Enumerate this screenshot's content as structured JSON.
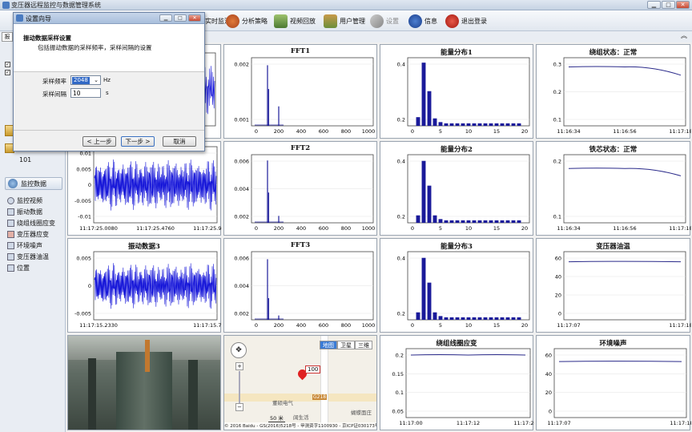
{
  "window": {
    "title": "变压器远程监控与数据管理系统",
    "min": "▁",
    "max": "□",
    "close": "✕"
  },
  "toolbar": {
    "items": [
      {
        "label": "实时监测",
        "icon": "monitor-icon"
      },
      {
        "label": "分析策略",
        "icon": "analysis-icon"
      },
      {
        "label": "视频回放",
        "icon": "video-icon"
      },
      {
        "label": "用户管理",
        "icon": "users-icon"
      },
      {
        "label": "设置",
        "icon": "wrench-icon"
      },
      {
        "label": "信息",
        "icon": "info-icon"
      },
      {
        "label": "退出登录",
        "icon": "logout-icon"
      }
    ]
  },
  "sidebar": {
    "tab_label": "报",
    "num_label": "101",
    "section": "监控数据",
    "items": [
      "监控视频",
      "振动数据",
      "绕组线圈应变",
      "变压器应变",
      "环境噪声",
      "变压器油温",
      "位置"
    ]
  },
  "dialog": {
    "title": "设置向导",
    "heading": "振动数据采样设置",
    "subheading": "包括振动数据的采样频率，采样间隔的设置",
    "freq_label": "采样频率",
    "freq_value": "2048",
    "freq_unit": "Hz",
    "interval_label": "采样间隔",
    "interval_value": "10",
    "interval_unit": "s",
    "prev_label": "< 上一步",
    "next_label": "下一步 >",
    "cancel_label": "取消",
    "close": "✕",
    "min": "▁",
    "max": "□"
  },
  "panels": {
    "vib1": {
      "title": "",
      "x_ticks": [
        "720"
      ]
    },
    "vib2": {
      "title": "",
      "y_ticks": [
        "0.01",
        "0.005",
        "0",
        "-0.005",
        "-0.01"
      ],
      "x_ticks": [
        "11:17:25.0080",
        "11:17:25.4760",
        "11:17:25.9440"
      ]
    },
    "vib3": {
      "title": "振动数据3",
      "y_ticks": [
        "0.005",
        "0",
        "-0.005"
      ],
      "x_ticks": [
        "11:17:15.2330",
        "11:17:15.7320"
      ]
    },
    "fft1": {
      "title": "FFT1",
      "y_ticks": [
        "0.002",
        "0.001"
      ],
      "x_ticks": [
        "0",
        "200",
        "400",
        "600",
        "800",
        "1000"
      ]
    },
    "fft2": {
      "title": "FFT2",
      "y_ticks": [
        "0.006",
        "0.004",
        "0.002"
      ],
      "x_ticks": [
        "0",
        "200",
        "400",
        "600",
        "800",
        "1000"
      ]
    },
    "fft3": {
      "title": "FFT3",
      "y_ticks": [
        "0.006",
        "0.004",
        "0.002"
      ],
      "x_ticks": [
        "0",
        "200",
        "400",
        "600",
        "800",
        "1000"
      ]
    },
    "en1": {
      "title": "能量分布1",
      "y_ticks": [
        "0.4",
        "0.2"
      ],
      "x_ticks": [
        "0",
        "5",
        "10",
        "15",
        "20"
      ]
    },
    "en2": {
      "title": "能量分布2",
      "y_ticks": [
        "0.4",
        "0.2"
      ],
      "x_ticks": [
        "0",
        "5",
        "10",
        "15",
        "20"
      ]
    },
    "en3": {
      "title": "能量分布3",
      "y_ticks": [
        "0.4",
        "0.2"
      ],
      "x_ticks": [
        "0",
        "5",
        "10",
        "15",
        "20"
      ]
    },
    "wind": {
      "title": "绕组状态：正常",
      "y_ticks": [
        "0.3",
        "0.2",
        "0.1"
      ],
      "x_ticks": [
        "11:16:34",
        "11:16:56",
        "11:17:18"
      ]
    },
    "core": {
      "title": "铁芯状态：正常",
      "y_ticks": [
        "0.2",
        "0.1"
      ],
      "x_ticks": [
        "11:16:34",
        "11:16:56",
        "11:17:18"
      ]
    },
    "oil": {
      "title": "变压器油温",
      "y_ticks": [
        "60",
        "40",
        "20",
        "0"
      ],
      "x_ticks": [
        "11:17:07",
        "11:17:18"
      ]
    },
    "strain": {
      "title": "绕组线圈应变",
      "y_ticks": [
        "0.2",
        "0.15",
        "0.1",
        "0.05"
      ],
      "x_ticks": [
        "11:17:00",
        "11:17:12",
        "11:17:24"
      ]
    },
    "noise": {
      "title": "环境噪声",
      "y_ticks": [
        "60",
        "40",
        "20",
        "0"
      ],
      "x_ticks": [
        "11:17:07",
        "11:17:18"
      ]
    }
  },
  "map": {
    "tabs": [
      "地图",
      "卫星",
      "三维"
    ],
    "marker_label": "100",
    "place1": "董硕电气",
    "place2": "阔生活",
    "place3": "蝴蝶面庄",
    "scale": "50 米",
    "road": "G218",
    "copyright": "© 2016 Baidu - GS(2016)5218号 - 甲测资字1100930 - 京ICP证030173号"
  },
  "chart_data": [
    {
      "type": "line",
      "title": "绕组状态：正常",
      "x": [
        "11:16:34",
        "11:16:56",
        "11:17:18"
      ],
      "series": [
        {
          "values": [
            0.29,
            0.29,
            0.26
          ]
        }
      ],
      "ylim": [
        0.1,
        0.3
      ]
    },
    {
      "type": "line",
      "title": "铁芯状态：正常",
      "x": [
        "11:16:34",
        "11:16:56",
        "11:17:18"
      ],
      "series": [
        {
          "values": [
            0.23,
            0.23,
            0.21
          ]
        }
      ],
      "ylim": [
        0.1,
        0.25
      ]
    },
    {
      "type": "line",
      "title": "变压器油温",
      "x": [
        "11:17:07",
        "11:17:18"
      ],
      "series": [
        {
          "values": [
            56,
            56
          ]
        }
      ],
      "ylim": [
        0,
        60
      ]
    },
    {
      "type": "line",
      "title": "绕组线圈应变",
      "x": [
        "11:17:00",
        "11:17:12",
        "11:17:24"
      ],
      "series": [
        {
          "values": [
            0.2,
            0.2,
            0.2
          ]
        }
      ],
      "ylim": [
        0.05,
        0.2
      ]
    },
    {
      "type": "line",
      "title": "环境噪声",
      "x": [
        "11:17:07",
        "11:17:18"
      ],
      "series": [
        {
          "values": [
            53,
            53
          ]
        }
      ],
      "ylim": [
        0,
        60
      ]
    },
    {
      "type": "bar",
      "title": "能量分布1",
      "x": [
        1,
        2,
        3,
        4,
        5,
        6,
        7,
        8,
        9,
        10,
        11,
        12,
        13,
        14,
        15,
        16,
        17,
        18,
        19
      ],
      "values": [
        0.07,
        0.51,
        0.28,
        0.06,
        0.03,
        0.02,
        0.02,
        0.02,
        0.02,
        0.02,
        0.02,
        0.02,
        0.02,
        0.02,
        0.02,
        0.02,
        0.02,
        0.02,
        0.02
      ],
      "ylim": [
        0,
        0.55
      ]
    },
    {
      "type": "bar",
      "title": "能量分布2",
      "x": [
        1,
        2,
        3,
        4,
        5,
        6,
        7,
        8,
        9,
        10,
        11,
        12,
        13,
        14,
        15,
        16,
        17,
        18,
        19
      ],
      "values": [
        0.06,
        0.5,
        0.3,
        0.06,
        0.03,
        0.02,
        0.02,
        0.02,
        0.02,
        0.02,
        0.02,
        0.02,
        0.02,
        0.02,
        0.02,
        0.02,
        0.02,
        0.02,
        0.02
      ],
      "ylim": [
        0,
        0.55
      ]
    },
    {
      "type": "bar",
      "title": "能量分布3",
      "x": [
        1,
        2,
        3,
        4,
        5,
        6,
        7,
        8,
        9,
        10,
        11,
        12,
        13,
        14,
        15,
        16,
        17,
        18,
        19
      ],
      "values": [
        0.06,
        0.5,
        0.3,
        0.06,
        0.03,
        0.02,
        0.02,
        0.02,
        0.02,
        0.02,
        0.02,
        0.02,
        0.02,
        0.02,
        0.02,
        0.02,
        0.02,
        0.02,
        0.02
      ],
      "ylim": [
        0,
        0.55
      ]
    },
    {
      "type": "bar",
      "title": "FFT1",
      "x": [
        100,
        110,
        200
      ],
      "values": [
        0.0028,
        0.0017,
        0.0009
      ],
      "ylim": [
        0,
        0.003
      ]
    },
    {
      "type": "bar",
      "title": "FFT2",
      "x": [
        100,
        110,
        200
      ],
      "values": [
        0.0072,
        0.0035,
        0.0008
      ],
      "ylim": [
        0,
        0.0075
      ]
    },
    {
      "type": "bar",
      "title": "FFT3",
      "x": [
        100,
        110,
        200
      ],
      "values": [
        0.007,
        0.0025,
        0.0005
      ],
      "ylim": [
        0,
        0.0075
      ]
    }
  ]
}
